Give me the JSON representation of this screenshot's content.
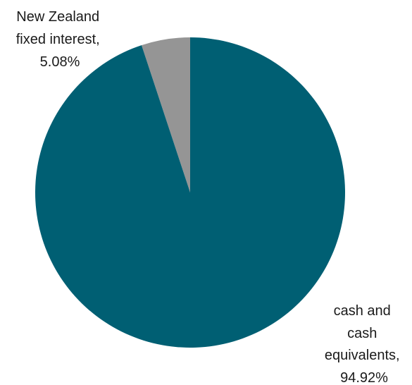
{
  "chart_data": {
    "type": "pie",
    "title": "",
    "slices": [
      {
        "label": "New Zealand fixed interest",
        "value": 5.08,
        "label_lines": [
          "New Zealand",
          "fixed interest,",
          "5.08%"
        ],
        "color": "#959595"
      },
      {
        "label": "cash and cash equivalents",
        "value": 94.92,
        "label_lines": [
          "cash and",
          "cash",
          "equivalents,",
          "94.92%"
        ],
        "color": "#005F73"
      }
    ],
    "start_angle": "12 o'clock",
    "direction": "counter-clockwise",
    "legend": "none"
  }
}
